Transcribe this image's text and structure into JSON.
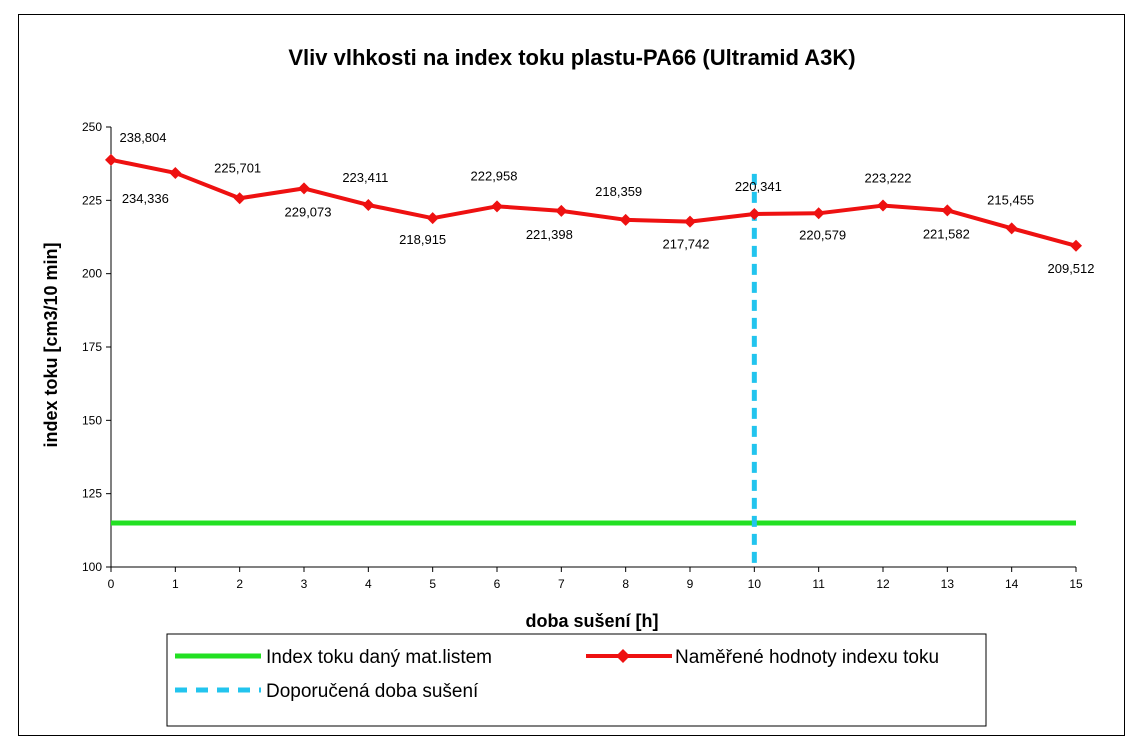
{
  "chart_data": {
    "type": "line",
    "title": "Vliv vlhkosti na index toku plastu-PA66 (Ultramid A3K)",
    "xlabel": "doba sušení [h]",
    "ylabel": "index toku [cm3/10 min]",
    "x": [
      0,
      1,
      2,
      3,
      4,
      5,
      6,
      7,
      8,
      9,
      10,
      11,
      12,
      13,
      14,
      15
    ],
    "xticks": [
      "0",
      "1",
      "2",
      "3",
      "4",
      "5",
      "6",
      "7",
      "8",
      "9",
      "10",
      "11",
      "12",
      "13",
      "14",
      "15"
    ],
    "xlim": [
      0,
      15
    ],
    "ylim": [
      100,
      250
    ],
    "yticks": [
      "100",
      "125",
      "150",
      "175",
      "200",
      "225",
      "250"
    ],
    "grid": false,
    "legend_position": "bottom",
    "series": [
      {
        "name": "Index toku daný mat.listem",
        "color": "#22e022",
        "style": "solid",
        "values": [
          115,
          115,
          115,
          115,
          115,
          115,
          115,
          115,
          115,
          115,
          115,
          115,
          115,
          115,
          115,
          115
        ]
      },
      {
        "name": "Naměřené hodnoty indexu toku",
        "color": "#ee1111",
        "style": "solid-diamond",
        "values": [
          238.804,
          234.336,
          225.701,
          229.073,
          223.411,
          218.915,
          222.958,
          221.398,
          218.359,
          217.742,
          220.341,
          220.579,
          223.222,
          221.582,
          215.455,
          209.512
        ],
        "data_labels": [
          "238,804",
          "234,336",
          "225,701",
          "229,073",
          "223,411",
          "218,915",
          "222,958",
          "221,398",
          "218,359",
          "217,742",
          "220,341",
          "220,579",
          "223,222",
          "221,582",
          "215,455",
          "209,512"
        ]
      },
      {
        "name": "Doporučená doba sušení",
        "color": "#22c4ee",
        "style": "dashed-vertical",
        "x_value": 10
      }
    ]
  }
}
